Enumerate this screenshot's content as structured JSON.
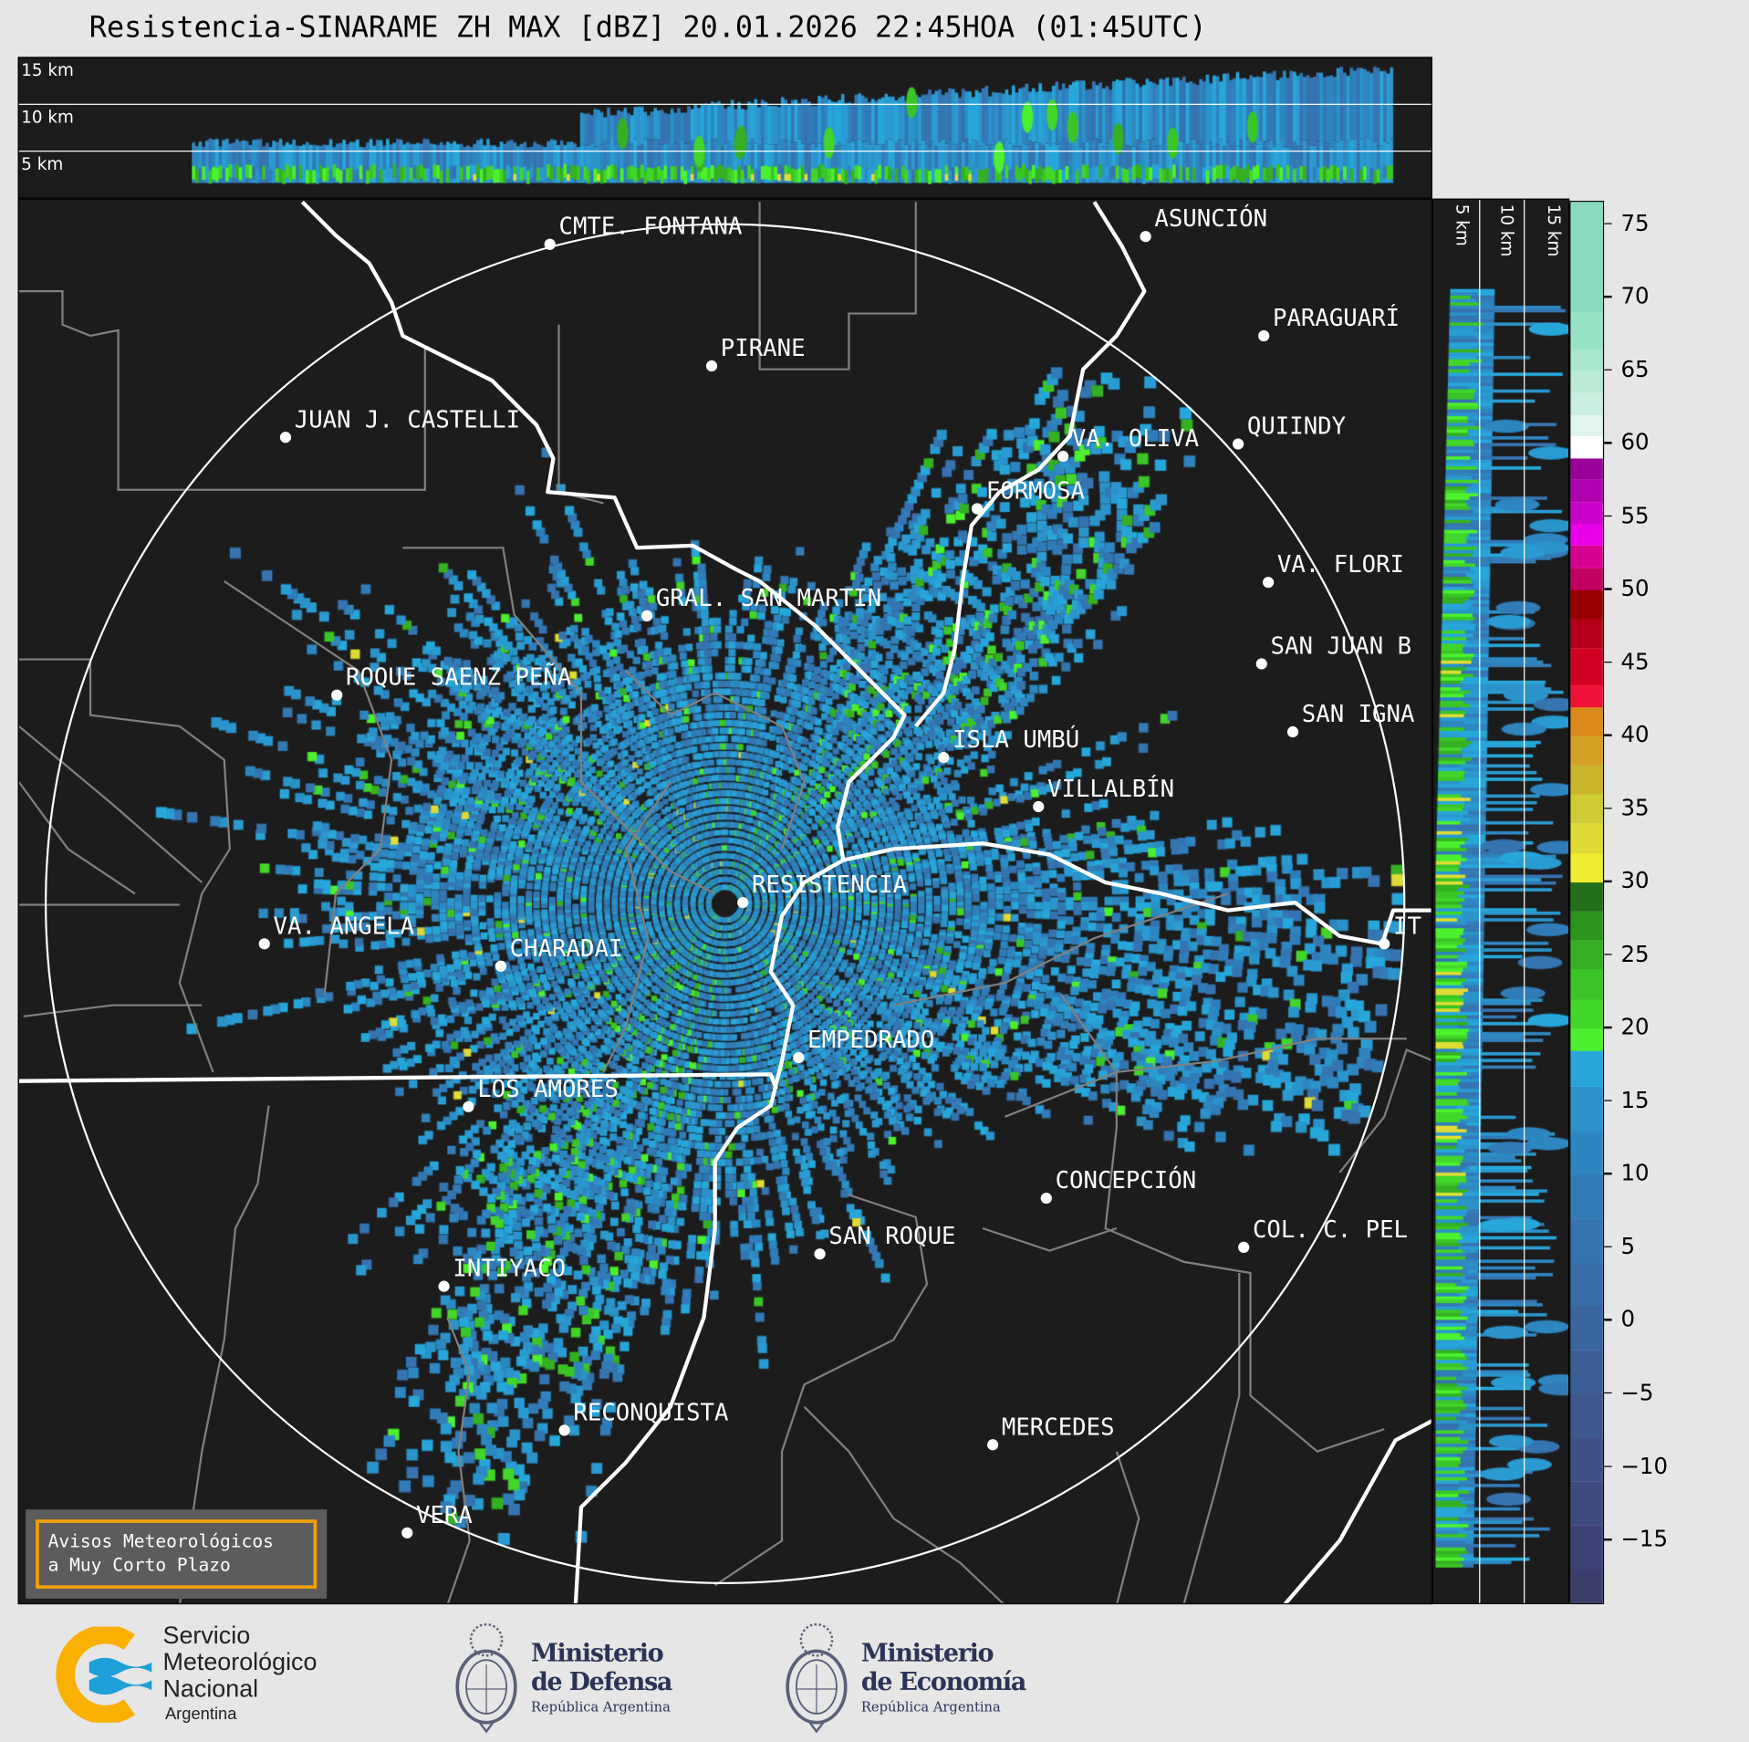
{
  "title": "Resistencia-SINARAME ZH MAX [dBZ] 20.01.2026 22:45HOA (01:45UTC)",
  "top_panel": {
    "height_labels": [
      "15 km",
      "10 km",
      "5 km"
    ]
  },
  "right_panel": {
    "height_labels": [
      "5 km",
      "10 km",
      "15 km"
    ]
  },
  "map": {
    "range_ring": true,
    "cities": [
      "CMTE. FONTANA",
      "ASUNCIÓN",
      "PARAGUARÍ",
      "PIRANE",
      "JUAN J. CASTELLI",
      "VA. OLIVA",
      "QUIINDY",
      "FORMOSA",
      "VA. FLORI",
      "GRAL. SAN MARTIN",
      "SAN JUAN B",
      "ROQUE SAENZ PEÑA",
      "SAN IGNA",
      "ISLA UMBÚ",
      "VILLALBÍN",
      "RESISTENCIA",
      "VA. ANGELA",
      "CHARADAI",
      "IT",
      "EMPEDRADO",
      "LOS AMORES",
      "CONCEPCIÓN",
      "COL. C. PEL",
      "SAN ROQUE",
      "INTIYACO",
      "RECONQUISTA",
      "MERCEDES",
      "VERA"
    ]
  },
  "avisos_button": {
    "line1": "Avisos Meteorológicos",
    "line2": "a Muy Corto Plazo"
  },
  "colorbar": {
    "unit": "dBZ",
    "range": [
      -19.5,
      76.5
    ],
    "ticks": [
      75,
      70,
      65,
      60,
      55,
      50,
      45,
      40,
      35,
      30,
      25,
      20,
      15,
      10,
      5,
      0,
      -5,
      -10,
      -15
    ],
    "tick_labels": [
      "75",
      "70",
      "65",
      "60",
      "55",
      "50",
      "45",
      "40",
      "35",
      "30",
      "25",
      "20",
      "15",
      "10",
      "5",
      "0",
      "−5",
      "−10",
      "−15"
    ],
    "bins": [
      [
        -19.5,
        "#3b3d6b"
      ],
      [
        -17,
        "#3c4374"
      ],
      [
        -14,
        "#3d4a7e"
      ],
      [
        -11,
        "#3d5187"
      ],
      [
        -8,
        "#3d578f"
      ],
      [
        -5,
        "#3c5e97"
      ],
      [
        -2,
        "#3a659f"
      ],
      [
        1,
        "#386da8"
      ],
      [
        4,
        "#3574b0"
      ],
      [
        7,
        "#317cb8"
      ],
      [
        10,
        "#2d86c0"
      ],
      [
        13,
        "#2a93ca"
      ],
      [
        16,
        "#27a6da"
      ],
      [
        18.5,
        "#4cf02e"
      ],
      [
        20,
        "#42d52a"
      ],
      [
        22,
        "#3ac526"
      ],
      [
        24,
        "#34b022"
      ],
      [
        26,
        "#2c951e"
      ],
      [
        28,
        "#22701a"
      ],
      [
        30,
        "#f0ec30"
      ],
      [
        32,
        "#dedb34"
      ],
      [
        34,
        "#cfcc33"
      ],
      [
        36,
        "#c9b42a"
      ],
      [
        38,
        "#d4a124"
      ],
      [
        40,
        "#d98a1b"
      ],
      [
        42,
        "#ee1238"
      ],
      [
        43.5,
        "#d00020"
      ],
      [
        46,
        "#b5001a"
      ],
      [
        48,
        "#980000"
      ],
      [
        50,
        "#c00060"
      ],
      [
        51.5,
        "#d60090"
      ],
      [
        53,
        "#e800e8"
      ],
      [
        54.5,
        "#cc00cc"
      ],
      [
        56,
        "#b000b0"
      ],
      [
        57.5,
        "#990099"
      ],
      [
        59,
        "#ffffff"
      ],
      [
        60.5,
        "#e0f5ec"
      ],
      [
        62,
        "#c8efe0"
      ],
      [
        63.5,
        "#b8ead6"
      ],
      [
        65,
        "#a8e6cd"
      ],
      [
        66.5,
        "#98e2c6"
      ],
      [
        69,
        "#88dcbd"
      ]
    ]
  },
  "logos": {
    "smn": {
      "line1": "Servicio",
      "line2": "Meteorológico",
      "line3": "Nacional",
      "line4": "Argentina"
    },
    "defensa": {
      "line1": "Ministerio",
      "line2": "de Defensa",
      "line3": "República Argentina"
    },
    "economia": {
      "line1": "Ministerio",
      "line2": "de Economía",
      "line3": "República Argentina"
    }
  },
  "colors": {
    "background": "#1c1c1c",
    "river": "#ffffff",
    "border": "#808080",
    "avisos_border": "#f5a000",
    "smn_orange": "#f9b000",
    "smn_blue": "#1e9fd8",
    "ministry_navy": "#2b3357"
  }
}
